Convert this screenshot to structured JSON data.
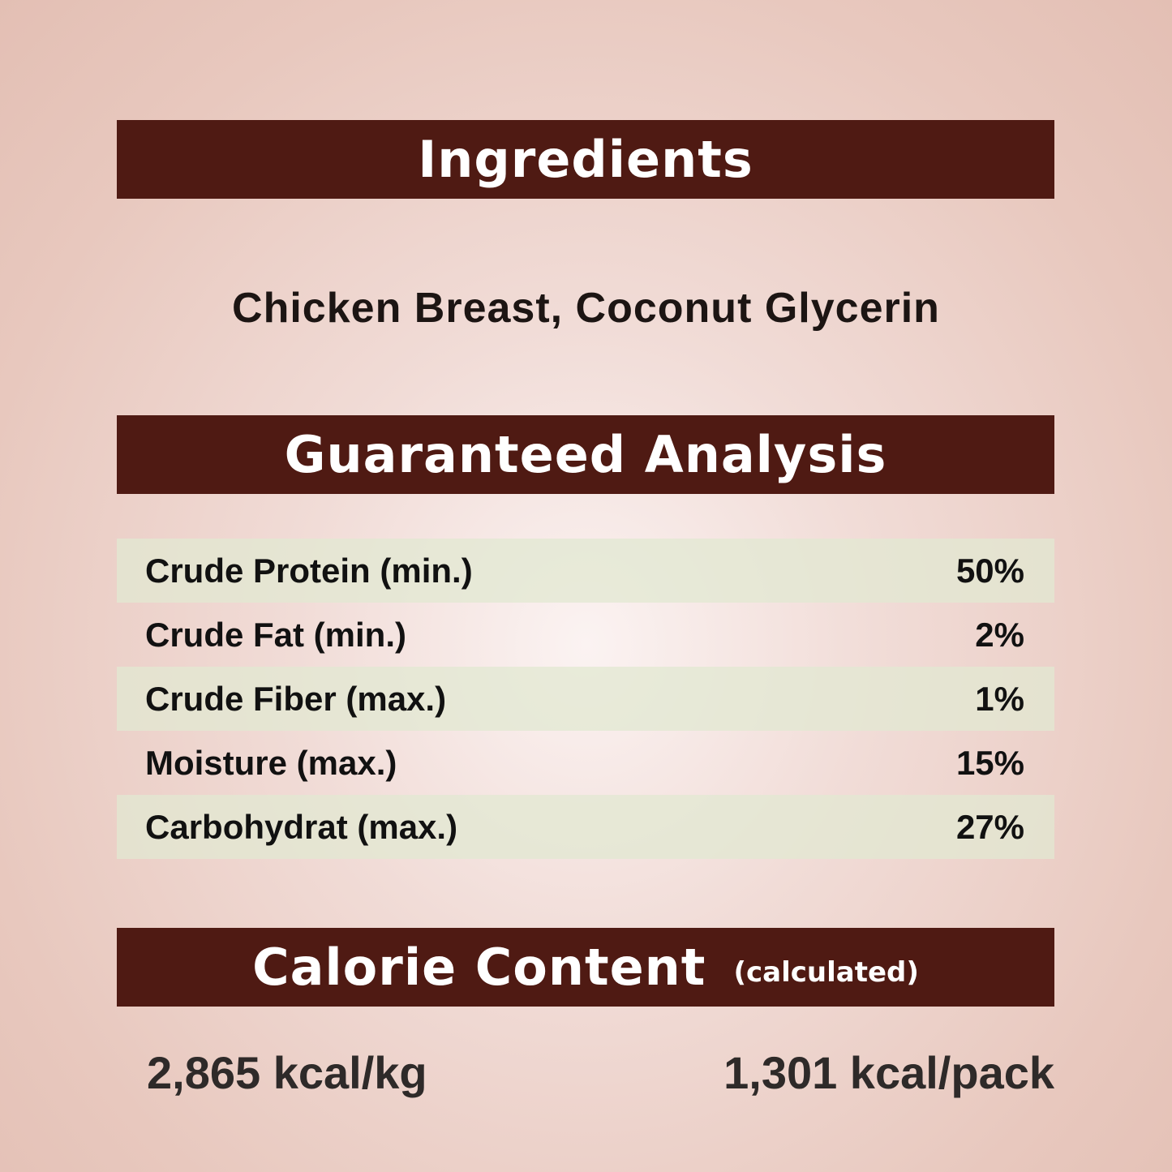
{
  "ingredients": {
    "heading": "Ingredients",
    "text": "Chicken Breast, Coconut Glycerin"
  },
  "analysis": {
    "heading": "Guaranteed Analysis",
    "rows": [
      {
        "label": "Crude Protein (min.)",
        "value": "50%"
      },
      {
        "label": "Crude Fat (min.)",
        "value": "2%"
      },
      {
        "label": "Crude Fiber (max.)",
        "value": "1%"
      },
      {
        "label": "Moisture (max.)",
        "value": "15%"
      },
      {
        "label": "Carbohydrat (max.)",
        "value": "27%"
      }
    ]
  },
  "calorie": {
    "heading": "Calorie Content",
    "subheading": "(calculated)",
    "per_kg": "2,865 kcal/kg",
    "per_pack": "1,301 kcal/pack"
  },
  "colors": {
    "banner": "#4f1a13",
    "row_shade": "#e1e8d2",
    "background": "#ecd2ca"
  }
}
